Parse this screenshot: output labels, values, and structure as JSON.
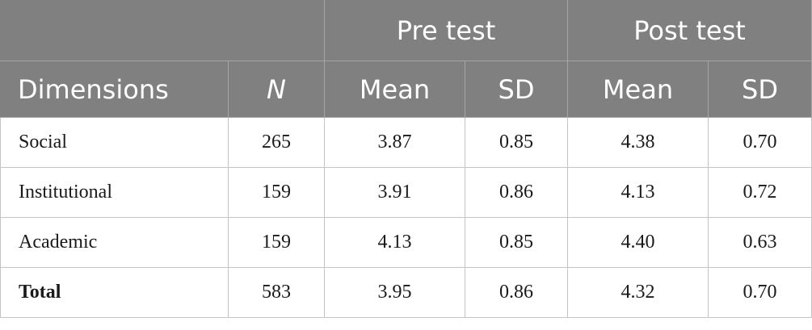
{
  "header": {
    "group_labels": [
      "Pre test",
      "Post test"
    ],
    "columns": [
      "Dimensions",
      "N",
      "Mean",
      "SD",
      "Mean",
      "SD"
    ]
  },
  "table": {
    "rows": [
      [
        "Social",
        "265",
        "3.87",
        "0.85",
        "4.38",
        "0.70"
      ],
      [
        "Institutional",
        "159",
        "3.91",
        "0.86",
        "4.13",
        "0.72"
      ],
      [
        "Academic",
        "159",
        "4.13",
        "0.85",
        "4.40",
        "0.63"
      ],
      [
        "Total",
        "583",
        "3.95",
        "0.86",
        "4.32",
        "0.70"
      ]
    ]
  }
}
